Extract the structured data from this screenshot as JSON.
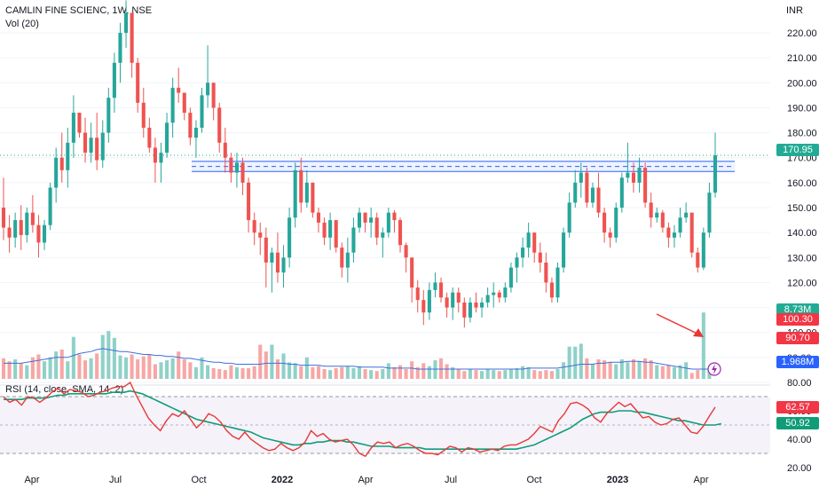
{
  "header": {
    "symbol": "CAMLIN FINE SCIENC, 1W, NSE",
    "volume_indicator": "Vol (20)",
    "rsi_indicator": "RSI (14, close, SMA, 14, 2)",
    "currency": "INR"
  },
  "price_tags": {
    "last": "170.95",
    "vol_current": "8.73M",
    "vol_a": "100.30",
    "vol_b": "90.70",
    "vol_ma": "1.968M",
    "rsi": "62.57",
    "rsi_ma": "50.92"
  },
  "colors": {
    "up": "#26a69a",
    "down": "#ef5350",
    "up_vol": "#8fd1c8",
    "down_vol": "#f6a7a5",
    "rsi_line": "#e53935",
    "rsi_ma": "#0f9d78",
    "vol_ma": "#3f6fd8",
    "zone": "#2962ff",
    "last_tag": "#22ab94",
    "vol_tag_red": "#f23645",
    "arrow": "#e53935"
  },
  "chart_data": {
    "type": "candlestick",
    "title": "CAMLIN FINE SCIENC, 1W, NSE",
    "price_axis": {
      "ticks": [
        80,
        90,
        100,
        110,
        120,
        130,
        140,
        150,
        160,
        170,
        180,
        190,
        200,
        210,
        220
      ],
      "tick_labels": [
        "80.00",
        "90.00",
        "100.00",
        "110.00",
        "120.00",
        "130.00",
        "140.00",
        "150.00",
        "160.00",
        "170.00",
        "180.00",
        "190.00",
        "200.00",
        "210.00",
        "220.00"
      ],
      "range": [
        78,
        233
      ]
    },
    "rsi_axis": {
      "ticks_labeled": [
        "20.00",
        "40.00",
        "60.00"
      ],
      "levels": [
        30,
        70
      ],
      "range": [
        18,
        84
      ]
    },
    "x_axis": {
      "labels": [
        "Apr",
        "Jul",
        "Oct",
        "2022",
        "Apr",
        "Jul",
        "Oct",
        "2023",
        "Apr"
      ],
      "bold_labels": [
        "2022",
        "2023"
      ]
    },
    "resistance_zone": {
      "upper": 168.5,
      "lower": 164.5,
      "mid": 166.5
    },
    "last_price": 170.95,
    "candles_ohlc": [
      [
        150,
        162,
        137,
        142
      ],
      [
        142,
        147,
        132,
        138
      ],
      [
        138,
        148,
        134,
        145
      ],
      [
        145,
        151,
        133,
        139
      ],
      [
        139,
        150,
        136,
        148
      ],
      [
        148,
        155,
        140,
        143
      ],
      [
        143,
        147,
        130,
        136
      ],
      [
        136,
        145,
        133,
        143
      ],
      [
        143,
        160,
        141,
        158
      ],
      [
        158,
        174,
        152,
        170
      ],
      [
        170,
        180,
        160,
        165
      ],
      [
        165,
        182,
        158,
        176
      ],
      [
        176,
        195,
        170,
        188
      ],
      [
        188,
        185,
        178,
        180
      ],
      [
        180,
        186,
        168,
        172
      ],
      [
        172,
        184,
        168,
        178
      ],
      [
        178,
        188,
        165,
        169
      ],
      [
        169,
        185,
        166,
        180
      ],
      [
        180,
        198,
        176,
        194
      ],
      [
        194,
        212,
        188,
        208
      ],
      [
        208,
        224,
        200,
        220
      ],
      [
        220,
        233,
        214,
        228
      ],
      [
        228,
        226,
        202,
        208
      ],
      [
        208,
        210,
        188,
        192
      ],
      [
        192,
        198,
        178,
        182
      ],
      [
        182,
        186,
        172,
        174
      ],
      [
        174,
        178,
        160,
        168
      ],
      [
        168,
        176,
        160,
        172
      ],
      [
        172,
        188,
        170,
        184
      ],
      [
        184,
        202,
        178,
        198
      ],
      [
        198,
        206,
        192,
        196
      ],
      [
        196,
        194,
        185,
        188
      ],
      [
        188,
        190,
        175,
        178
      ],
      [
        178,
        185,
        170,
        182
      ],
      [
        182,
        198,
        180,
        195
      ],
      [
        195,
        215,
        190,
        200
      ],
      [
        200,
        197,
        185,
        190
      ],
      [
        190,
        192,
        172,
        176
      ],
      [
        176,
        182,
        164,
        170
      ],
      [
        170,
        172,
        160,
        164
      ],
      [
        164,
        172,
        158,
        168
      ],
      [
        168,
        170,
        155,
        160
      ],
      [
        160,
        162,
        140,
        145
      ],
      [
        145,
        148,
        135,
        140
      ],
      [
        140,
        144,
        131,
        138
      ],
      [
        138,
        142,
        118,
        128
      ],
      [
        128,
        134,
        116,
        132
      ],
      [
        132,
        140,
        120,
        124
      ],
      [
        124,
        135,
        118,
        130
      ],
      [
        130,
        150,
        126,
        146
      ],
      [
        146,
        168,
        142,
        165
      ],
      [
        165,
        170,
        148,
        152
      ],
      [
        152,
        165,
        150,
        160
      ],
      [
        160,
        155,
        146,
        148
      ],
      [
        148,
        150,
        140,
        144
      ],
      [
        144,
        146,
        135,
        138
      ],
      [
        138,
        148,
        133,
        145
      ],
      [
        145,
        142,
        132,
        134
      ],
      [
        134,
        136,
        122,
        126
      ],
      [
        126,
        138,
        120,
        132
      ],
      [
        132,
        146,
        128,
        142
      ],
      [
        142,
        150,
        140,
        148
      ],
      [
        148,
        147,
        140,
        144
      ],
      [
        144,
        150,
        138,
        146
      ],
      [
        146,
        148,
        135,
        138
      ],
      [
        138,
        142,
        130,
        140
      ],
      [
        140,
        150,
        138,
        148
      ],
      [
        148,
        149,
        140,
        145
      ],
      [
        145,
        146,
        132,
        135
      ],
      [
        135,
        136,
        124,
        130
      ],
      [
        130,
        128,
        112,
        118
      ],
      [
        118,
        121,
        108,
        113
      ],
      [
        113,
        117,
        103,
        108
      ],
      [
        108,
        120,
        105,
        117
      ],
      [
        117,
        124,
        114,
        120
      ],
      [
        120,
        122,
        112,
        114
      ],
      [
        114,
        116,
        106,
        110
      ],
      [
        110,
        118,
        105,
        116
      ],
      [
        116,
        118,
        108,
        112
      ],
      [
        112,
        114,
        102,
        106
      ],
      [
        106,
        114,
        104,
        112
      ],
      [
        112,
        116,
        108,
        110
      ],
      [
        110,
        114,
        106,
        112
      ],
      [
        112,
        118,
        110,
        115
      ],
      [
        115,
        120,
        110,
        116
      ],
      [
        116,
        117,
        112,
        114
      ],
      [
        114,
        120,
        112,
        118
      ],
      [
        118,
        128,
        116,
        126
      ],
      [
        126,
        132,
        120,
        130
      ],
      [
        130,
        138,
        126,
        134
      ],
      [
        134,
        144,
        130,
        140
      ],
      [
        140,
        138,
        128,
        132
      ],
      [
        132,
        136,
        124,
        128
      ],
      [
        128,
        132,
        116,
        120
      ],
      [
        120,
        122,
        112,
        114
      ],
      [
        114,
        128,
        112,
        126
      ],
      [
        126,
        142,
        124,
        140
      ],
      [
        140,
        156,
        138,
        152
      ],
      [
        152,
        165,
        150,
        160
      ],
      [
        160,
        168,
        154,
        164
      ],
      [
        164,
        166,
        150,
        152
      ],
      [
        152,
        160,
        150,
        158
      ],
      [
        158,
        164,
        146,
        148
      ],
      [
        148,
        150,
        136,
        140
      ],
      [
        140,
        142,
        134,
        138
      ],
      [
        138,
        152,
        136,
        150
      ],
      [
        150,
        164,
        148,
        162
      ],
      [
        162,
        176,
        160,
        164
      ],
      [
        164,
        168,
        156,
        160
      ],
      [
        160,
        170,
        156,
        166
      ],
      [
        166,
        168,
        150,
        152
      ],
      [
        152,
        156,
        142,
        146
      ],
      [
        146,
        150,
        144,
        148
      ],
      [
        148,
        149,
        140,
        142
      ],
      [
        142,
        144,
        134,
        138
      ],
      [
        138,
        143,
        134,
        140
      ],
      [
        140,
        150,
        138,
        146
      ],
      [
        146,
        152,
        144,
        148
      ],
      [
        148,
        144,
        130,
        132
      ],
      [
        132,
        134,
        124,
        126
      ],
      [
        126,
        142,
        125,
        140
      ],
      [
        140,
        160,
        138,
        156
      ],
      [
        156,
        180,
        154,
        170.95
      ]
    ],
    "volume_relative": [
      0.21,
      0.18,
      0.2,
      0.16,
      0.14,
      0.22,
      0.25,
      0.18,
      0.22,
      0.28,
      0.3,
      0.18,
      0.43,
      0.25,
      0.19,
      0.21,
      0.26,
      0.45,
      0.49,
      0.42,
      0.24,
      0.22,
      0.25,
      0.2,
      0.23,
      0.25,
      0.15,
      0.17,
      0.19,
      0.21,
      0.28,
      0.2,
      0.17,
      0.12,
      0.22,
      0.14,
      0.11,
      0.1,
      0.09,
      0.14,
      0.12,
      0.11,
      0.11,
      0.13,
      0.35,
      0.28,
      0.35,
      0.2,
      0.26,
      0.17,
      0.16,
      0.13,
      0.22,
      0.12,
      0.13,
      0.1,
      0.09,
      0.11,
      0.12,
      0.13,
      0.11,
      0.13,
      0.1,
      0.09,
      0.08,
      0.1,
      0.16,
      0.12,
      0.14,
      0.1,
      0.18,
      0.12,
      0.16,
      0.13,
      0.19,
      0.21,
      0.15,
      0.12,
      0.1,
      0.08,
      0.1,
      0.09,
      0.08,
      0.1,
      0.09,
      0.08,
      0.09,
      0.1,
      0.11,
      0.13,
      0.12,
      0.09,
      0.08,
      0.09,
      0.08,
      0.1,
      0.17,
      0.33,
      0.33,
      0.36,
      0.21,
      0.15,
      0.2,
      0.19,
      0.17,
      0.15,
      0.2,
      0.17,
      0.2,
      0.18,
      0.21,
      0.19,
      0.14,
      0.13,
      0.14,
      0.12,
      0.14,
      0.17,
      0.06,
      0.09,
      0.68,
      0.1
    ],
    "vol_ma_relative": [
      0.16,
      0.16,
      0.16,
      0.16,
      0.17,
      0.18,
      0.19,
      0.2,
      0.21,
      0.22,
      0.22,
      0.22,
      0.24,
      0.26,
      0.27,
      0.28,
      0.3,
      0.31,
      0.3,
      0.29,
      0.28,
      0.28,
      0.27,
      0.26,
      0.25,
      0.25,
      0.24,
      0.24,
      0.23,
      0.23,
      0.22,
      0.21,
      0.21,
      0.2,
      0.19,
      0.18,
      0.17,
      0.17,
      0.16,
      0.16,
      0.15,
      0.15,
      0.15,
      0.15,
      0.15,
      0.16,
      0.16,
      0.16,
      0.16,
      0.15,
      0.15,
      0.14,
      0.14,
      0.14,
      0.14,
      0.13,
      0.13,
      0.13,
      0.13,
      0.13,
      0.13,
      0.12,
      0.12,
      0.12,
      0.12,
      0.12,
      0.11,
      0.11,
      0.11,
      0.11,
      0.11,
      0.1,
      0.1,
      0.1,
      0.1,
      0.1,
      0.1,
      0.1,
      0.1,
      0.1,
      0.1,
      0.1,
      0.1,
      0.1,
      0.1,
      0.1,
      0.1,
      0.1,
      0.1,
      0.1,
      0.11,
      0.11,
      0.11,
      0.11,
      0.11,
      0.11,
      0.12,
      0.13,
      0.14,
      0.15,
      0.15,
      0.15,
      0.16,
      0.16,
      0.17,
      0.17,
      0.17,
      0.18,
      0.18,
      0.18,
      0.17,
      0.17,
      0.16,
      0.15,
      0.14,
      0.13,
      0.12,
      0.11,
      0.1,
      0.1,
      0.1,
      0.1
    ],
    "rsi": [
      70,
      66,
      68,
      64,
      70,
      69,
      66,
      69,
      73,
      76,
      72,
      75,
      74,
      73,
      70,
      71,
      73,
      74,
      76,
      77,
      77,
      80,
      71,
      63,
      55,
      50,
      46,
      53,
      58,
      56,
      60,
      54,
      48,
      52,
      58,
      56,
      52,
      46,
      42,
      40,
      45,
      40,
      37,
      34,
      32,
      33,
      37,
      34,
      32,
      34,
      38,
      46,
      42,
      44,
      40,
      38,
      39,
      40,
      36,
      30,
      28,
      34,
      38,
      37,
      38,
      34,
      36,
      37,
      35,
      32,
      30,
      30,
      29,
      32,
      35,
      34,
      31,
      34,
      33,
      31,
      32,
      33,
      32,
      35,
      36,
      36,
      38,
      40,
      44,
      49,
      47,
      45,
      53,
      58,
      65,
      66,
      64,
      61,
      55,
      52,
      58,
      62,
      66,
      63,
      65,
      60,
      55,
      56,
      52,
      50,
      51,
      54,
      55,
      50,
      45,
      44,
      49,
      56,
      62.57
    ],
    "rsi_ma": [
      68,
      68,
      68,
      68,
      69,
      69,
      69,
      69,
      70,
      71,
      71,
      72,
      72,
      72,
      72,
      72,
      72,
      72,
      73,
      73,
      73,
      74,
      73,
      72,
      70,
      68,
      66,
      64,
      62,
      60,
      58,
      56,
      54,
      53,
      52,
      51,
      50,
      49,
      48,
      47,
      46,
      45,
      43,
      41,
      40,
      39,
      38,
      37,
      36,
      36,
      37,
      37,
      38,
      38,
      39,
      39,
      39,
      38,
      38,
      37,
      36,
      35,
      35,
      35,
      35,
      34,
      34,
      34,
      34,
      34,
      33,
      33,
      33,
      33,
      33,
      33,
      33,
      33,
      33,
      33,
      33,
      33,
      33,
      33,
      33,
      33,
      34,
      35,
      36,
      38,
      40,
      42,
      44,
      46,
      48,
      51,
      54,
      56,
      58,
      59,
      59,
      59,
      60,
      60,
      60,
      59,
      59,
      58,
      57,
      56,
      55,
      54,
      53,
      53,
      52,
      51,
      50,
      50,
      50,
      50.92
    ]
  }
}
